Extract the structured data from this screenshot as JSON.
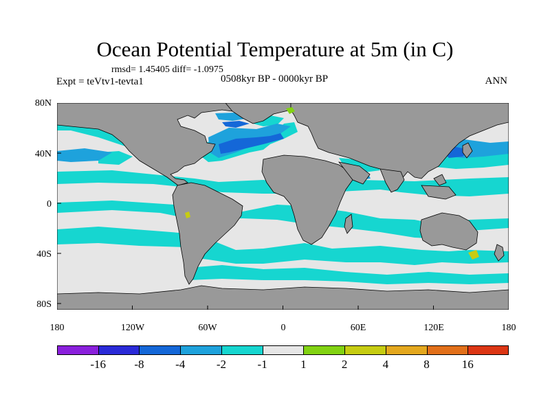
{
  "title": "Ocean Potential Temperature at 5m (in C)",
  "stats": "rmsd= 1.45405 diff= -1.0975",
  "period": "0508kyr BP - 0000kyr BP",
  "experiment": "Expt = teVtv1-tevta1",
  "season": "ANN",
  "lat_labels": [
    "80N",
    "40N",
    "0",
    "40S",
    "80S"
  ],
  "lon_labels": [
    "180",
    "120W",
    "60W",
    "0",
    "60E",
    "120E",
    "180"
  ],
  "legend": {
    "colors": [
      "#8a20dc",
      "#2a2ad8",
      "#1467d8",
      "#1ea2dc",
      "#16d6d0",
      "#e6e6e6",
      "#82d212",
      "#c6cc12",
      "#e4a81e",
      "#e2701a",
      "#dc3614"
    ],
    "labels": [
      "-16",
      "-8",
      "-4",
      "-2",
      "-1",
      "1",
      "2",
      "4",
      "8",
      "16"
    ]
  },
  "palette": {
    "land": "#999999",
    "neutral": "#e6e6e6",
    "cyan": "#16d6d0",
    "light_blue": "#1ea2dc",
    "blue": "#1467d8",
    "green": "#82d212",
    "yellow": "#c6cc12"
  }
}
